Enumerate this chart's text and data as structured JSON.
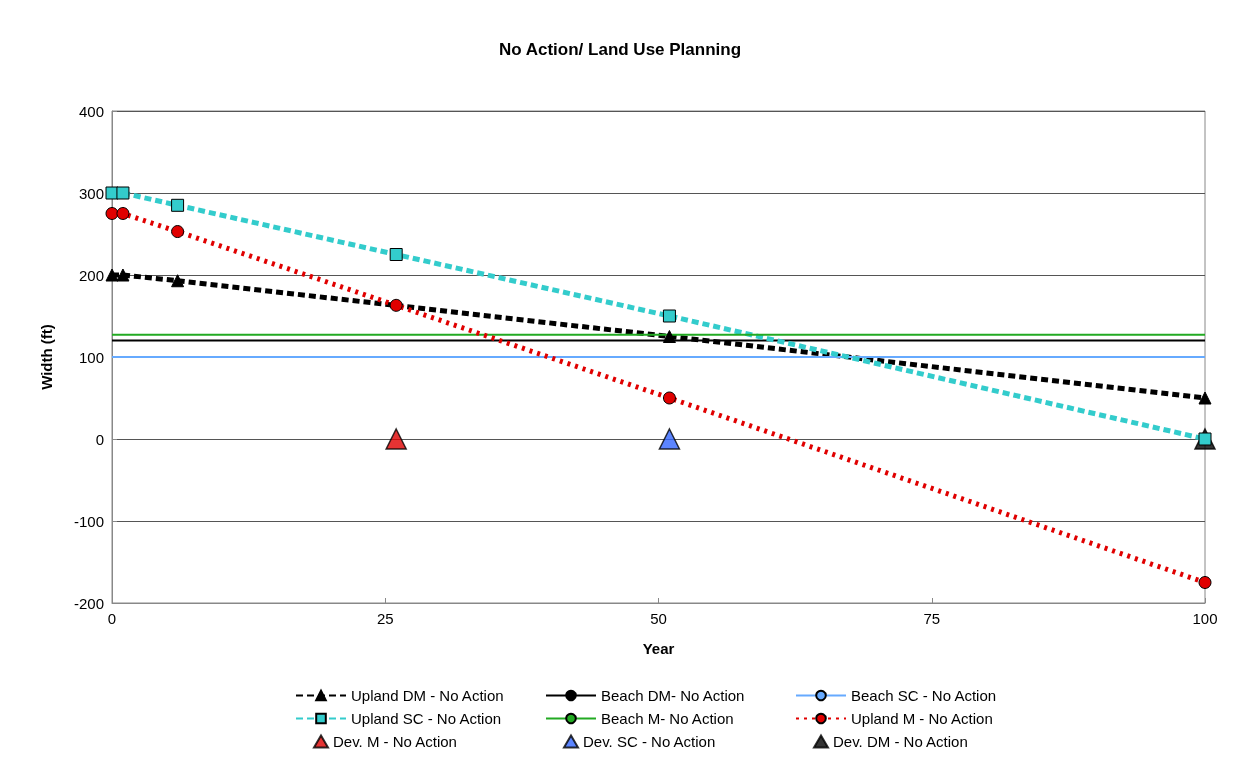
{
  "chart_data": {
    "type": "line",
    "title": "No Action/ Land Use Planning",
    "xlabel": "Year",
    "ylabel": "Width (ft)",
    "xlim": [
      0,
      100
    ],
    "xticks": [
      0,
      25,
      50,
      75,
      100
    ],
    "ylim": [
      -200,
      400
    ],
    "yticks": [
      -200,
      -100,
      0,
      100,
      200,
      300,
      400
    ],
    "grid": "y",
    "legend": "bottom",
    "series": [
      {
        "name": "Upland DM - No Action",
        "color": "#000000",
        "line_style": "dashed",
        "marker": "triangle",
        "x": [
          0,
          1,
          6,
          51,
          100
        ],
        "values": [
          200,
          200,
          193,
          125,
          50
        ]
      },
      {
        "name": "Beach DM- No Action",
        "color": "#000000",
        "line_style": "solid",
        "marker": "none",
        "x": [
          0,
          100
        ],
        "values": [
          120,
          120
        ]
      },
      {
        "name": "Beach SC - No Action",
        "color": "#66aaff",
        "line_style": "solid",
        "marker": "none",
        "x": [
          0,
          100
        ],
        "values": [
          100,
          100
        ]
      },
      {
        "name": "Upland SC - No Action",
        "color": "#33cccc",
        "line_style": "dashed",
        "marker": "square",
        "x": [
          0,
          1,
          6,
          26,
          51,
          100
        ],
        "values": [
          300,
          300,
          285,
          225,
          150,
          0
        ]
      },
      {
        "name": "Beach M- No Action",
        "color": "#22aa22",
        "line_style": "solid",
        "marker": "none",
        "x": [
          0,
          100
        ],
        "values": [
          127,
          127
        ]
      },
      {
        "name": "Upland M - No Action",
        "color": "#e00000",
        "line_style": "dotted",
        "marker": "circle",
        "x": [
          0,
          1,
          6,
          26,
          51,
          100
        ],
        "values": [
          275,
          275,
          253,
          163,
          50,
          -175
        ]
      },
      {
        "name": "Dev. M - No Action",
        "type": "scatter",
        "color": "#dd0000",
        "marker": "triangle",
        "x": [
          26
        ],
        "values": [
          0
        ]
      },
      {
        "name": "Dev. SC - No Action",
        "type": "scatter",
        "color": "#3366ff",
        "marker": "triangle",
        "x": [
          51
        ],
        "values": [
          0
        ]
      },
      {
        "name": "Dev. DM - No Action",
        "type": "scatter",
        "color": "#000000",
        "marker": "triangle",
        "x": [
          100
        ],
        "values": [
          0
        ]
      }
    ]
  }
}
